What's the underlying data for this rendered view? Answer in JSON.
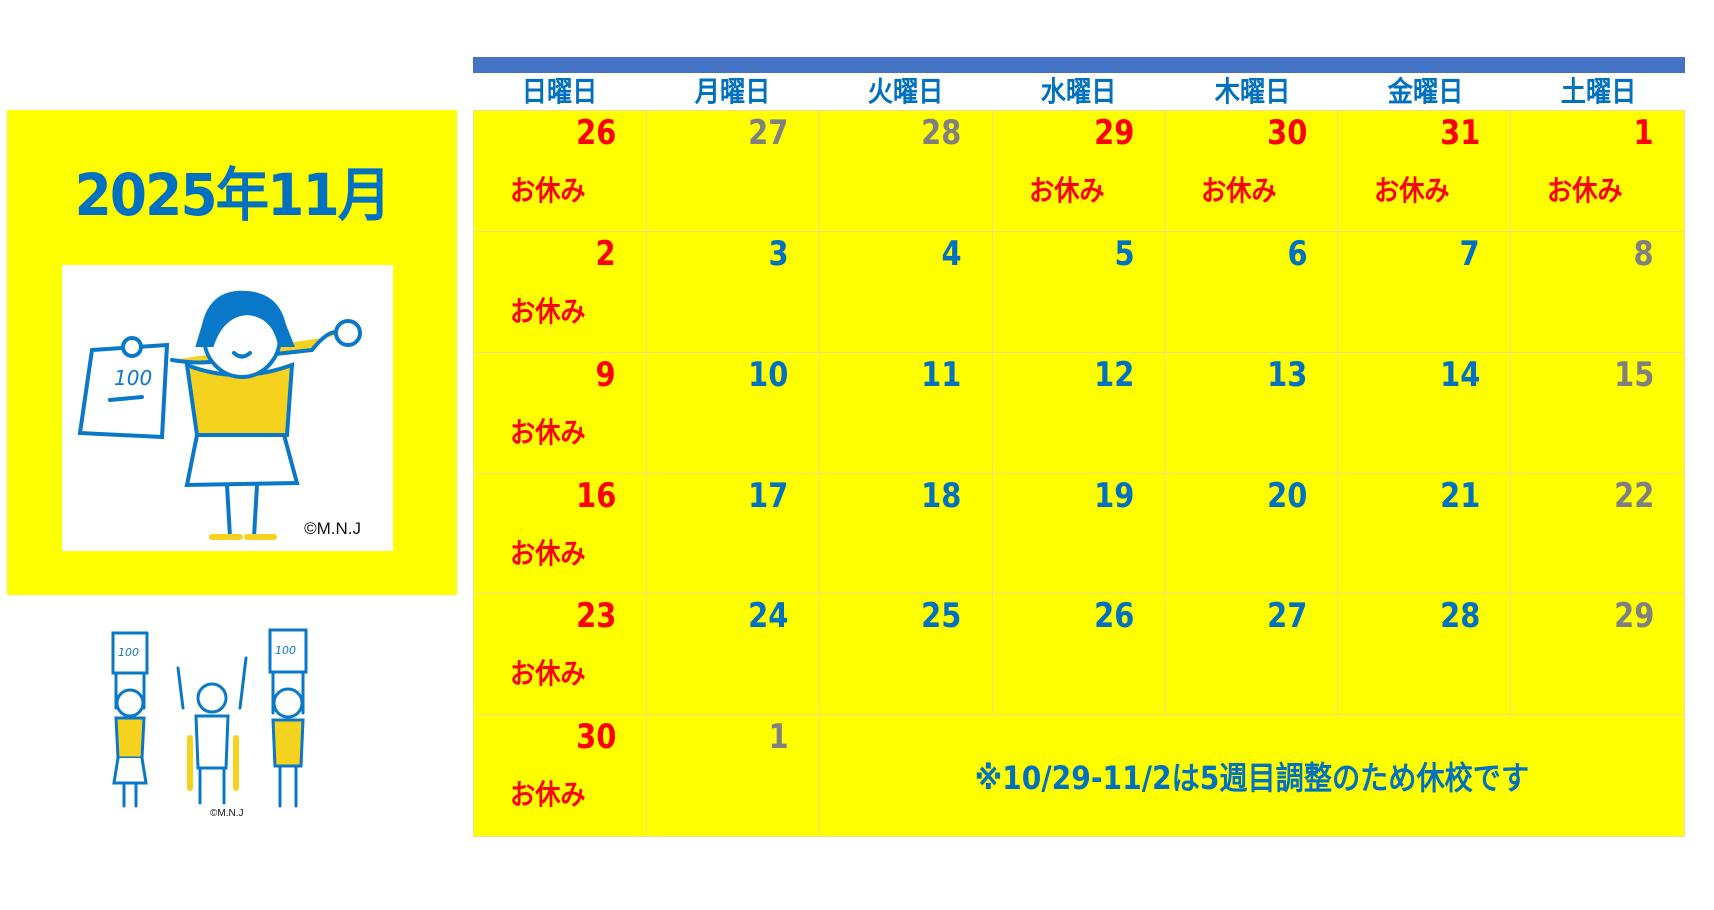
{
  "title": "2025年11月",
  "copyright": "©M.N.J",
  "illustration_text": "100",
  "colors": {
    "background": "#ffff00",
    "blue": "#0070c0",
    "red": "#ff0000",
    "gray": "#808080",
    "bar": "#4472c4"
  },
  "weekdays": [
    "日曜日",
    "月曜日",
    "火曜日",
    "水曜日",
    "木曜日",
    "金曜日",
    "土曜日"
  ],
  "holiday_label": "お休み",
  "weeks": [
    [
      {
        "d": "26",
        "c": "red",
        "h": true
      },
      {
        "d": "27",
        "c": "gray"
      },
      {
        "d": "28",
        "c": "gray"
      },
      {
        "d": "29",
        "c": "red",
        "h": true
      },
      {
        "d": "30",
        "c": "red",
        "h": true
      },
      {
        "d": "31",
        "c": "red",
        "h": true
      },
      {
        "d": "1",
        "c": "red",
        "h": true
      }
    ],
    [
      {
        "d": "2",
        "c": "red",
        "h": true
      },
      {
        "d": "3",
        "c": "blue"
      },
      {
        "d": "4",
        "c": "blue"
      },
      {
        "d": "5",
        "c": "blue"
      },
      {
        "d": "6",
        "c": "blue"
      },
      {
        "d": "7",
        "c": "blue"
      },
      {
        "d": "8",
        "c": "gray"
      }
    ],
    [
      {
        "d": "9",
        "c": "red",
        "h": true
      },
      {
        "d": "10",
        "c": "blue"
      },
      {
        "d": "11",
        "c": "blue"
      },
      {
        "d": "12",
        "c": "blue"
      },
      {
        "d": "13",
        "c": "blue"
      },
      {
        "d": "14",
        "c": "blue"
      },
      {
        "d": "15",
        "c": "gray"
      }
    ],
    [
      {
        "d": "16",
        "c": "red",
        "h": true
      },
      {
        "d": "17",
        "c": "blue"
      },
      {
        "d": "18",
        "c": "blue"
      },
      {
        "d": "19",
        "c": "blue"
      },
      {
        "d": "20",
        "c": "blue"
      },
      {
        "d": "21",
        "c": "blue"
      },
      {
        "d": "22",
        "c": "gray"
      }
    ],
    [
      {
        "d": "23",
        "c": "red",
        "h": true
      },
      {
        "d": "24",
        "c": "blue"
      },
      {
        "d": "25",
        "c": "blue"
      },
      {
        "d": "26",
        "c": "blue"
      },
      {
        "d": "27",
        "c": "blue"
      },
      {
        "d": "28",
        "c": "blue"
      },
      {
        "d": "29",
        "c": "gray"
      }
    ],
    [
      {
        "d": "30",
        "c": "red",
        "h": true
      },
      {
        "d": "1",
        "c": "gray"
      }
    ]
  ],
  "note": "※10/29-11/2は5週目調整のため休校です"
}
